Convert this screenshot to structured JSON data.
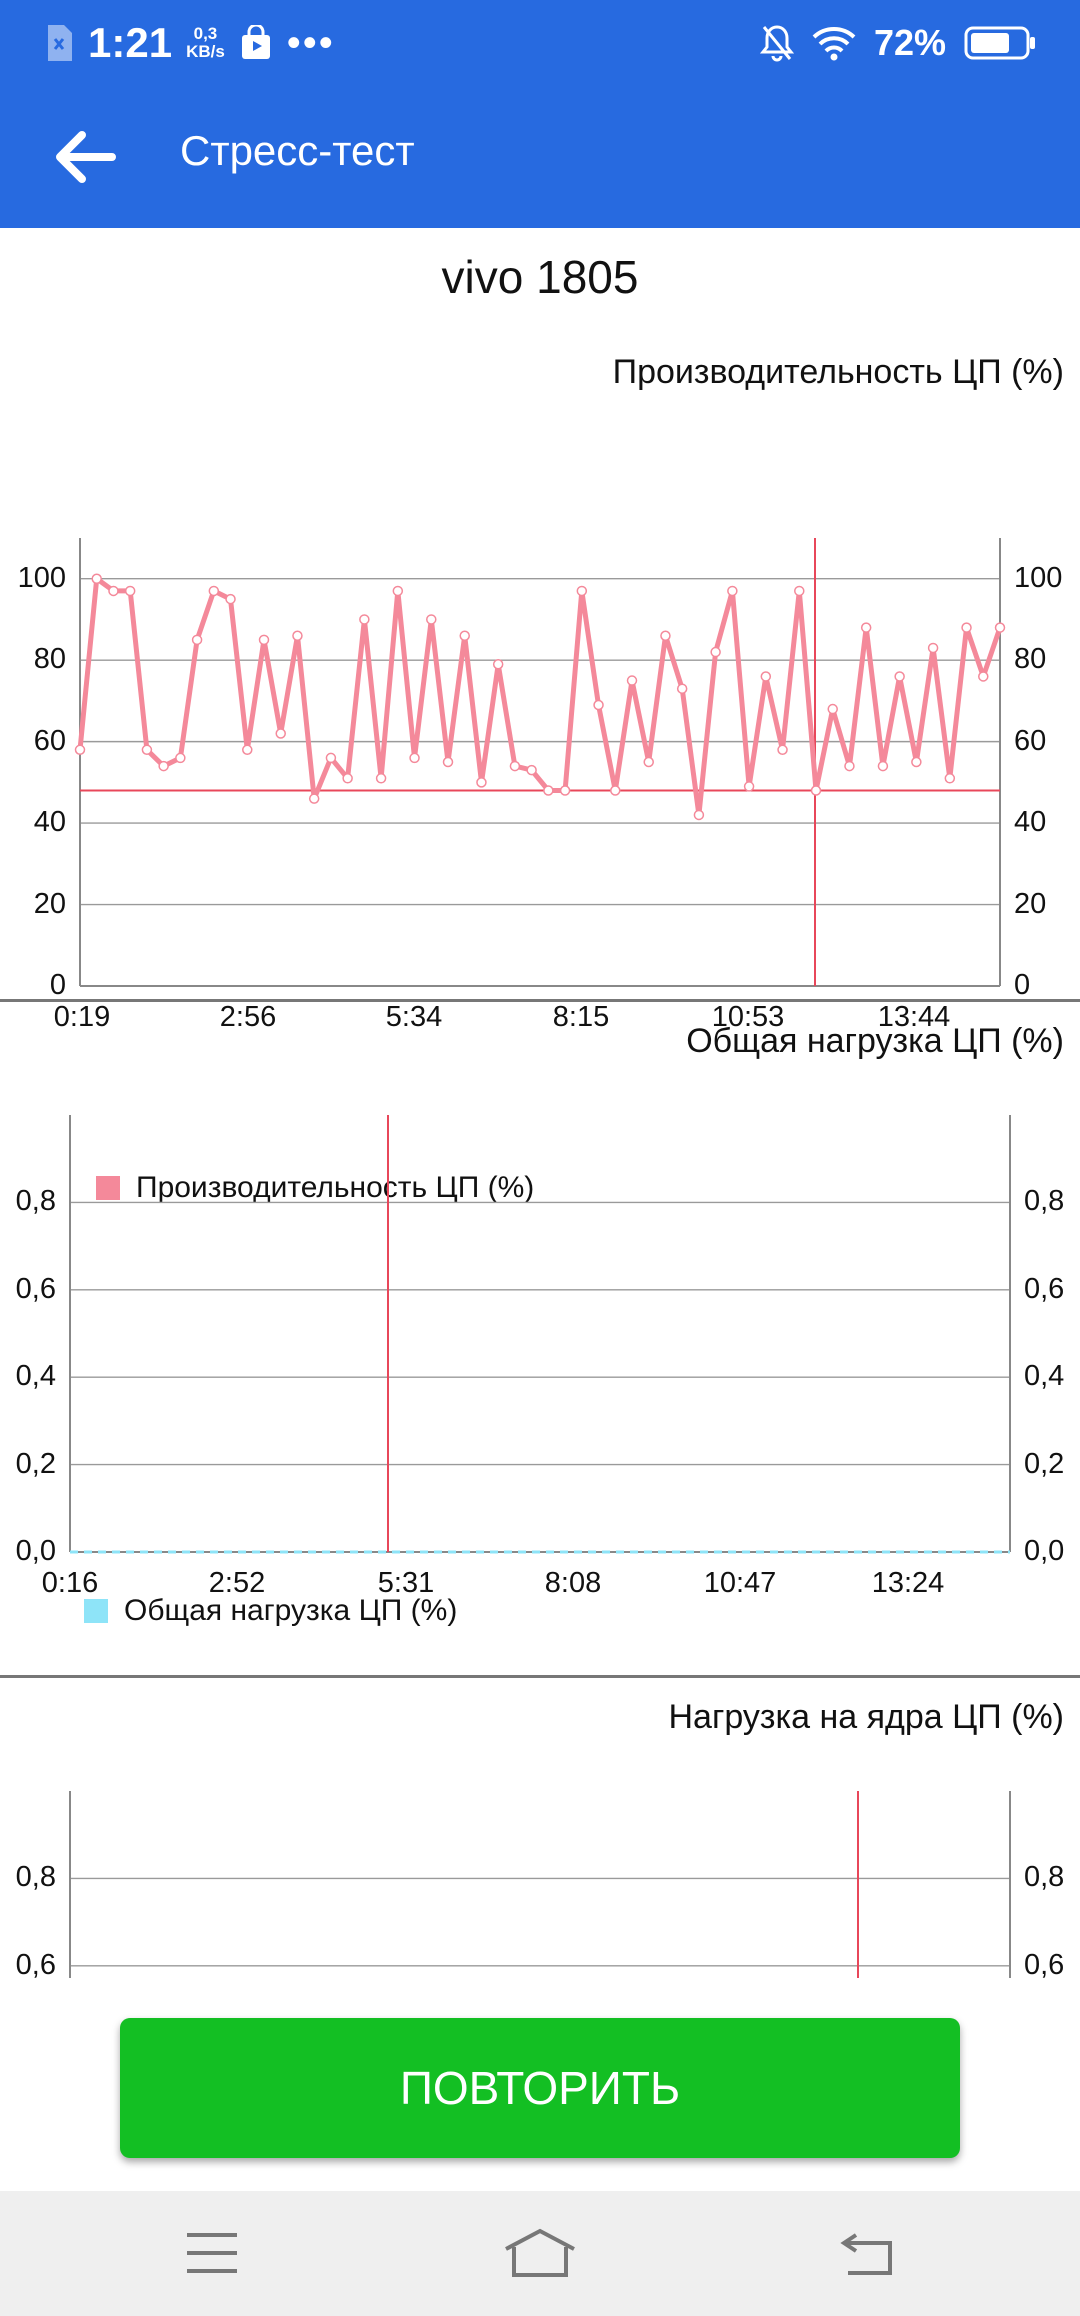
{
  "status_bar": {
    "time": "1:21",
    "speed_value": "0,3",
    "speed_unit": "KB/s",
    "more": "•••",
    "battery": "72%",
    "icons": [
      "sim-icon",
      "store-icon",
      "mute-bell-icon",
      "wifi-icon",
      "battery-icon"
    ]
  },
  "app_bar": {
    "title": "Стресс-тест",
    "back_icon": "arrow-left-icon"
  },
  "device_name": "vivo 1805",
  "charts": {
    "performance": {
      "title": "Производительность ЦП (%)",
      "legend": "Производительность ЦП (%)",
      "y_ticks": [
        "100",
        "80",
        "60",
        "40",
        "20",
        "0"
      ],
      "x_ticks": [
        "0:19",
        "2:56",
        "5:34",
        "8:15",
        "10:53",
        "13:44"
      ]
    },
    "total_load": {
      "title": "Общая нагрузка ЦП (%)",
      "legend": "Общая нагрузка ЦП (%)",
      "y_ticks": [
        "0,8",
        "0,6",
        "0,4",
        "0,2",
        "0,0"
      ],
      "x_ticks": [
        "0:16",
        "2:52",
        "5:31",
        "8:08",
        "10:47",
        "13:24"
      ]
    },
    "core_load": {
      "title": "Нагрузка на ядра ЦП (%)",
      "y_ticks": [
        "0,8",
        "0,6"
      ]
    }
  },
  "chart_data": [
    {
      "type": "line",
      "title": "Производительность ЦП (%)",
      "x_ticks": [
        "0:19",
        "2:56",
        "5:34",
        "8:15",
        "10:53",
        "13:44"
      ],
      "ylim": [
        0,
        110
      ],
      "grid": true,
      "legend_position": "bottom-left",
      "color": "#f4899a",
      "reference_line": 48,
      "series": [
        {
          "name": "Производительность ЦП (%)",
          "values": [
            58,
            100,
            97,
            97,
            58,
            54,
            56,
            85,
            97,
            95,
            58,
            85,
            62,
            86,
            46,
            56,
            51,
            90,
            51,
            97,
            56,
            90,
            55,
            86,
            50,
            79,
            54,
            53,
            48,
            48,
            97,
            69,
            48,
            75,
            55,
            86,
            73,
            42,
            82,
            97,
            49,
            76,
            58,
            97,
            48,
            68,
            54,
            88,
            54,
            76,
            55,
            83,
            51,
            88,
            76,
            88
          ]
        }
      ]
    },
    {
      "type": "line",
      "title": "Общая нагрузка ЦП (%)",
      "x_ticks": [
        "0:16",
        "2:52",
        "5:31",
        "8:08",
        "10:47",
        "13:24"
      ],
      "ylim": [
        0,
        1
      ],
      "grid": true,
      "legend_position": "bottom-left",
      "color": "#8ee4f8",
      "series": [
        {
          "name": "Общая нагрузка ЦП (%)",
          "values": [
            0,
            0,
            0,
            0,
            0,
            0,
            0,
            0,
            0,
            0,
            0,
            0,
            0,
            0,
            0,
            0,
            0,
            0,
            0,
            0,
            0,
            0,
            0,
            0,
            0,
            0,
            0,
            0,
            0,
            0,
            0,
            0,
            0,
            0,
            0,
            0,
            0,
            0,
            0,
            0,
            0,
            0,
            0,
            0,
            0,
            0,
            0,
            0,
            0,
            0,
            0,
            0,
            0,
            0,
            0,
            0
          ]
        }
      ]
    },
    {
      "type": "line",
      "title": "Нагрузка на ядра ЦП (%)",
      "ylim": [
        0,
        1
      ],
      "grid": true,
      "series": []
    }
  ],
  "repeat_button": {
    "label": "ПОВТОРИТЬ",
    "color": "#13bf23"
  },
  "nav_bar": {
    "icons": [
      "menu-icon",
      "home-icon",
      "back-icon"
    ]
  },
  "colors": {
    "app_bar": "#276ae0",
    "accent_line": "#e8475a",
    "grid": "#9a9a9a"
  }
}
